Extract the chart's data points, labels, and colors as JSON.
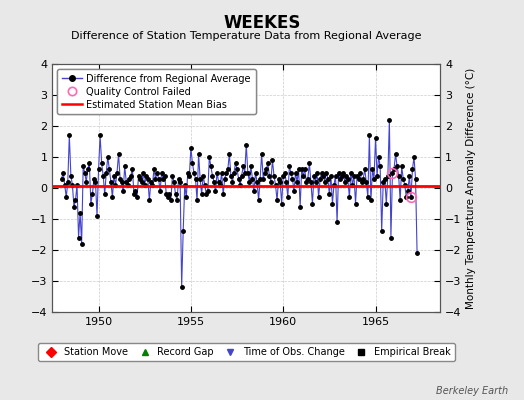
{
  "title": "WEEKES",
  "subtitle": "Difference of Station Temperature Data from Regional Average",
  "ylabel_right": "Monthly Temperature Anomaly Difference (°C)",
  "xlim": [
    1947.5,
    1968.5
  ],
  "ylim": [
    -4,
    4
  ],
  "yticks": [
    -4,
    -3,
    -2,
    -1,
    0,
    1,
    2,
    3,
    4
  ],
  "xticks": [
    1950,
    1955,
    1960,
    1965
  ],
  "bias_value": 0.05,
  "background_color": "#e8e8e8",
  "plot_bg_color": "#ffffff",
  "line_color": "#4444cc",
  "bias_color": "#ff0000",
  "marker_color": "#000000",
  "qc_color": "#ff69b4",
  "berkeley_earth_text": "Berkeley Earth",
  "time_series": [
    1948.0,
    1948.083,
    1948.167,
    1948.25,
    1948.333,
    1948.417,
    1948.5,
    1948.583,
    1948.667,
    1948.75,
    1948.833,
    1948.917,
    1949.0,
    1949.083,
    1949.167,
    1949.25,
    1949.333,
    1949.417,
    1949.5,
    1949.583,
    1949.667,
    1949.75,
    1949.833,
    1949.917,
    1950.0,
    1950.083,
    1950.167,
    1950.25,
    1950.333,
    1950.417,
    1950.5,
    1950.583,
    1950.667,
    1950.75,
    1950.833,
    1950.917,
    1951.0,
    1951.083,
    1951.167,
    1951.25,
    1951.333,
    1951.417,
    1951.5,
    1951.583,
    1951.667,
    1951.75,
    1951.833,
    1951.917,
    1952.0,
    1952.083,
    1952.167,
    1952.25,
    1952.333,
    1952.417,
    1952.5,
    1952.583,
    1952.667,
    1952.75,
    1952.833,
    1952.917,
    1953.0,
    1953.083,
    1953.167,
    1953.25,
    1953.333,
    1953.417,
    1953.5,
    1953.583,
    1953.667,
    1953.75,
    1953.833,
    1953.917,
    1954.0,
    1954.083,
    1954.167,
    1954.25,
    1954.333,
    1954.417,
    1954.5,
    1954.583,
    1954.667,
    1954.75,
    1954.833,
    1954.917,
    1955.0,
    1955.083,
    1955.167,
    1955.25,
    1955.333,
    1955.417,
    1955.5,
    1955.583,
    1955.667,
    1955.75,
    1955.833,
    1955.917,
    1956.0,
    1956.083,
    1956.167,
    1956.25,
    1956.333,
    1956.417,
    1956.5,
    1956.583,
    1956.667,
    1956.75,
    1956.833,
    1956.917,
    1957.0,
    1957.083,
    1957.167,
    1957.25,
    1957.333,
    1957.417,
    1957.5,
    1957.583,
    1957.667,
    1957.75,
    1957.833,
    1957.917,
    1958.0,
    1958.083,
    1958.167,
    1958.25,
    1958.333,
    1958.417,
    1958.5,
    1958.583,
    1958.667,
    1958.75,
    1958.833,
    1958.917,
    1959.0,
    1959.083,
    1959.167,
    1959.25,
    1959.333,
    1959.417,
    1959.5,
    1959.583,
    1959.667,
    1959.75,
    1959.833,
    1959.917,
    1960.0,
    1960.083,
    1960.167,
    1960.25,
    1960.333,
    1960.417,
    1960.5,
    1960.583,
    1960.667,
    1960.75,
    1960.833,
    1960.917,
    1961.0,
    1961.083,
    1961.167,
    1961.25,
    1961.333,
    1961.417,
    1961.5,
    1961.583,
    1961.667,
    1961.75,
    1961.833,
    1961.917,
    1962.0,
    1962.083,
    1962.167,
    1962.25,
    1962.333,
    1962.417,
    1962.5,
    1962.583,
    1962.667,
    1962.75,
    1962.833,
    1962.917,
    1963.0,
    1963.083,
    1963.167,
    1963.25,
    1963.333,
    1963.417,
    1963.5,
    1963.583,
    1963.667,
    1963.75,
    1963.833,
    1963.917,
    1964.0,
    1964.083,
    1964.167,
    1964.25,
    1964.333,
    1964.417,
    1964.5,
    1964.583,
    1964.667,
    1964.75,
    1964.833,
    1964.917,
    1965.0,
    1965.083,
    1965.167,
    1965.25,
    1965.333,
    1965.417,
    1965.5,
    1965.583,
    1965.667,
    1965.75,
    1965.833,
    1965.917,
    1966.0,
    1966.083,
    1966.167,
    1966.25,
    1966.333,
    1966.417,
    1966.5,
    1966.583,
    1966.667,
    1966.75,
    1966.833,
    1966.917,
    1967.0,
    1967.083,
    1967.167,
    1967.25
  ],
  "values": [
    0.3,
    0.5,
    0.1,
    -0.3,
    0.2,
    1.7,
    0.4,
    0.1,
    -0.6,
    -0.4,
    0.1,
    -1.6,
    -0.8,
    -1.8,
    0.7,
    0.5,
    0.2,
    0.6,
    0.8,
    -0.5,
    -0.2,
    0.3,
    0.2,
    -0.9,
    0.6,
    1.7,
    0.8,
    0.4,
    -0.2,
    0.5,
    1.0,
    0.6,
    0.2,
    -0.3,
    0.4,
    0.1,
    0.5,
    1.1,
    0.3,
    0.2,
    -0.1,
    0.7,
    0.2,
    0.1,
    0.3,
    0.4,
    0.6,
    -0.2,
    -0.1,
    -0.3,
    0.4,
    0.3,
    0.2,
    0.5,
    0.1,
    0.4,
    0.3,
    -0.4,
    0.2,
    0.1,
    0.6,
    0.3,
    0.5,
    0.3,
    -0.1,
    0.5,
    0.3,
    0.4,
    -0.2,
    -0.3,
    -0.2,
    -0.4,
    0.4,
    0.2,
    -0.2,
    -0.4,
    0.3,
    0.2,
    -3.2,
    -1.4,
    0.1,
    -0.3,
    0.5,
    0.4,
    1.3,
    0.8,
    0.5,
    0.3,
    -0.4,
    1.1,
    0.3,
    -0.2,
    0.4,
    0.1,
    -0.2,
    -0.1,
    1.0,
    0.7,
    0.4,
    0.2,
    -0.1,
    0.5,
    0.2,
    0.1,
    0.5,
    -0.2,
    0.3,
    0.5,
    0.6,
    1.1,
    0.4,
    0.2,
    0.5,
    0.8,
    0.6,
    0.3,
    0.1,
    0.4,
    0.7,
    0.5,
    1.4,
    0.5,
    0.2,
    0.7,
    0.3,
    -0.1,
    0.5,
    0.2,
    -0.4,
    0.3,
    1.1,
    0.3,
    0.5,
    0.6,
    0.8,
    0.4,
    0.2,
    0.9,
    0.4,
    0.1,
    -0.4,
    0.3,
    0.2,
    -0.5,
    0.4,
    0.5,
    0.2,
    -0.3,
    0.7,
    0.5,
    0.3,
    -0.1,
    0.5,
    0.2,
    0.6,
    -0.6,
    0.6,
    0.4,
    0.6,
    0.2,
    0.3,
    0.8,
    0.2,
    -0.5,
    0.4,
    0.2,
    0.5,
    -0.3,
    0.3,
    0.5,
    0.4,
    0.2,
    0.5,
    0.3,
    -0.2,
    0.4,
    -0.5,
    0.1,
    0.4,
    -1.1,
    0.5,
    0.3,
    0.4,
    0.5,
    0.2,
    0.4,
    0.3,
    -0.3,
    0.5,
    0.1,
    0.4,
    -0.5,
    0.4,
    0.3,
    0.5,
    0.2,
    0.3,
    0.6,
    0.2,
    -0.3,
    1.7,
    -0.4,
    0.6,
    0.3,
    1.6,
    0.4,
    1.0,
    0.7,
    -1.4,
    0.2,
    0.3,
    -0.5,
    0.4,
    2.2,
    -1.6,
    0.5,
    0.6,
    1.1,
    0.7,
    0.4,
    -0.4,
    0.7,
    0.3,
    0.1,
    -0.3,
    -0.1,
    0.4,
    -0.3,
    0.6,
    1.0,
    0.3,
    -2.1
  ],
  "qc_failed_indices": [
    215,
    227
  ],
  "legend2_items": [
    {
      "label": "Station Move",
      "color": "#ff0000",
      "marker": "D"
    },
    {
      "label": "Record Gap",
      "color": "#008000",
      "marker": "^"
    },
    {
      "label": "Time of Obs. Change",
      "color": "#4444cc",
      "marker": "v"
    },
    {
      "label": "Empirical Break",
      "color": "#000000",
      "marker": "s"
    }
  ]
}
